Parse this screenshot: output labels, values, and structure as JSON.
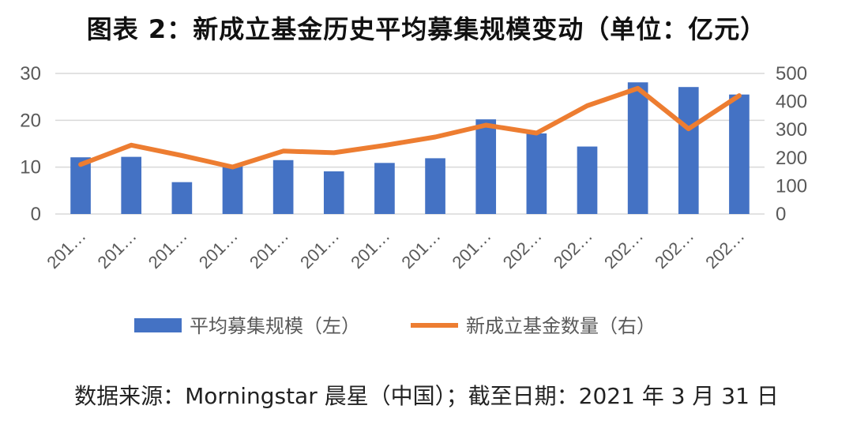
{
  "title": "图表 2：新成立基金历史平均募集规模变动（单位：亿元）",
  "source": "数据来源：Morningstar 晨星（中国）；截至日期：2021 年 3 月 31 日",
  "chart_data": {
    "type": "bar+line",
    "categories": [
      "201…",
      "201…",
      "201…",
      "201…",
      "201…",
      "201…",
      "201…",
      "201…",
      "201…",
      "202…",
      "202…",
      "202…",
      "202…",
      "202…"
    ],
    "series": [
      {
        "name": "平均募集规模（左）",
        "type": "bar",
        "axis": "left",
        "color": "#4472C4",
        "values": [
          12.1,
          12.2,
          6.8,
          10.3,
          11.5,
          9.1,
          10.9,
          11.9,
          20.2,
          17.2,
          14.4,
          28.1,
          27.1,
          25.5
        ]
      },
      {
        "name": "新成立基金数量（右）",
        "type": "line",
        "axis": "right",
        "color": "#ED7D31",
        "values": [
          176,
          245,
          208,
          167,
          224,
          218,
          244,
          274,
          316,
          288,
          385,
          447,
          303,
          421
        ]
      }
    ],
    "yleft": {
      "ticks": [
        0,
        10,
        20,
        30
      ],
      "lim": [
        0,
        30
      ]
    },
    "yright": {
      "ticks": [
        0,
        100,
        200,
        300,
        400,
        500
      ],
      "lim": [
        0,
        500
      ]
    },
    "grid": true,
    "legend_position": "bottom"
  }
}
